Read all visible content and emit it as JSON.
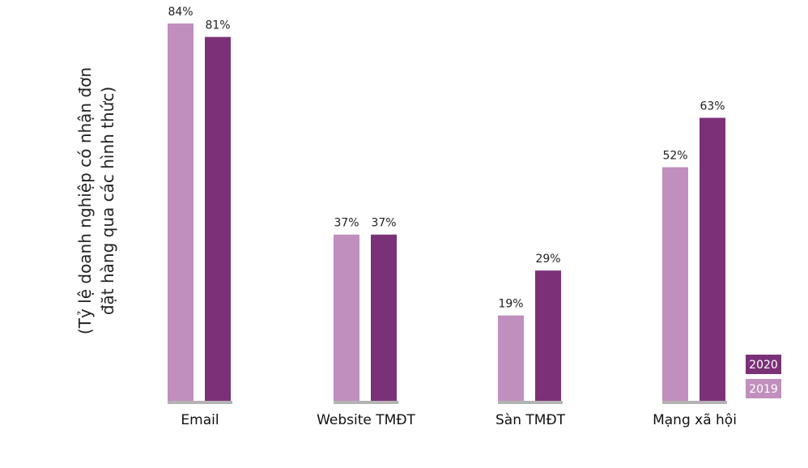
{
  "chart_data": {
    "type": "bar",
    "title": "",
    "xlabel": "",
    "ylabel": "(Tỷ lệ doanh nghiệp có nhận đơn đặt hàng qua các hình thức)",
    "ylabel_lines": [
      "(Tỷ lệ doanh nghiệp có nhận đơn",
      "đặt hàng qua các hình thức)"
    ],
    "categories": [
      "Email",
      "Website TMĐT",
      "Sàn TMĐT",
      "Mạng xã hội"
    ],
    "series": [
      {
        "name": "2019",
        "values": [
          84,
          37,
          19,
          52
        ],
        "labels": [
          "84%",
          "37%",
          "19%",
          "52%"
        ],
        "color": "#c08fbd"
      },
      {
        "name": "2020",
        "values": [
          81,
          37,
          29,
          63
        ],
        "labels": [
          "81%",
          "37%",
          "29%",
          "63%"
        ],
        "color": "#7b3178"
      }
    ],
    "ylim": [
      0,
      84
    ],
    "grid": false,
    "legend_position": "bottom-right",
    "baseline_color": "#b3b3b3"
  }
}
